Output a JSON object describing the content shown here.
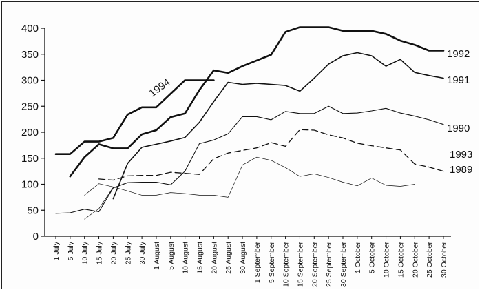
{
  "chart_data": {
    "type": "line",
    "title": "",
    "xlabel": "",
    "ylabel": "",
    "ylim": [
      0,
      400
    ],
    "yticks": [
      0,
      50,
      100,
      150,
      200,
      250,
      300,
      350,
      400
    ],
    "categories": [
      "1 July",
      "5 July",
      "10 July",
      "15 July",
      "20 July",
      "25 July",
      "30 July",
      "1 August",
      "5 August",
      "10 August",
      "15 August",
      "20 August",
      "25 August",
      "30 August",
      "1 September",
      "5 September",
      "10 September",
      "15 September",
      "20 September",
      "25 September",
      "30 September",
      "1 October",
      "5 October",
      "10 October",
      "15 October",
      "20 October",
      "25 October",
      "30 October"
    ],
    "grid": false,
    "legend": "labels at line ends",
    "series": [
      {
        "name": "1994",
        "style": "thick",
        "color": "#111111",
        "values": [
          158,
          158,
          182,
          182,
          189,
          234,
          248,
          248,
          274,
          300,
          300,
          300,
          null,
          null,
          null,
          null,
          null,
          null,
          null,
          null,
          null,
          null,
          null,
          null,
          null,
          null,
          null,
          null
        ]
      },
      {
        "name": "1992",
        "style": "thick",
        "color": "#111111",
        "values": [
          null,
          115,
          152,
          177,
          169,
          169,
          196,
          204,
          229,
          236,
          281,
          319,
          314,
          327,
          338,
          349,
          393,
          402,
          402,
          402,
          395,
          395,
          395,
          389,
          376,
          368,
          357,
          357
        ]
      },
      {
        "name": "1991",
        "style": "medium",
        "color": "#111111",
        "values": [
          null,
          null,
          null,
          null,
          72,
          140,
          171,
          177,
          183,
          190,
          219,
          259,
          296,
          292,
          294,
          292,
          290,
          279,
          304,
          331,
          347,
          353,
          347,
          327,
          340,
          315,
          309,
          304
        ]
      },
      {
        "name": "1990",
        "style": "thin",
        "color": "#111111",
        "values": [
          44,
          45,
          52,
          47,
          93,
          103,
          104,
          104,
          99,
          125,
          178,
          185,
          197,
          230,
          230,
          224,
          240,
          236,
          236,
          250,
          236,
          237,
          241,
          246,
          237,
          231,
          224,
          215
        ]
      },
      {
        "name": "1993",
        "style": "dashed",
        "color": "#111111",
        "values": [
          null,
          null,
          null,
          110,
          108,
          116,
          117,
          117,
          123,
          121,
          119,
          149,
          160,
          165,
          170,
          180,
          173,
          205,
          204,
          195,
          189,
          179,
          174,
          170,
          166,
          139,
          133,
          125
        ]
      },
      {
        "name": "1989",
        "style": "hairline",
        "color": "#111111",
        "values": [
          null,
          null,
          79,
          101,
          95,
          87,
          79,
          79,
          84,
          82,
          79,
          79,
          75,
          137,
          152,
          146,
          132,
          115,
          120,
          113,
          104,
          97,
          112,
          98,
          96,
          100,
          null,
          null
        ]
      },
      {
        "name": "",
        "style": "hairline",
        "color": "#111111",
        "values": [
          null,
          null,
          33,
          53,
          94,
          null,
          null,
          null,
          null,
          null,
          null,
          null,
          null,
          null,
          null,
          null,
          null,
          null,
          null,
          null,
          null,
          null,
          null,
          null,
          null,
          null,
          null,
          null
        ]
      }
    ]
  }
}
